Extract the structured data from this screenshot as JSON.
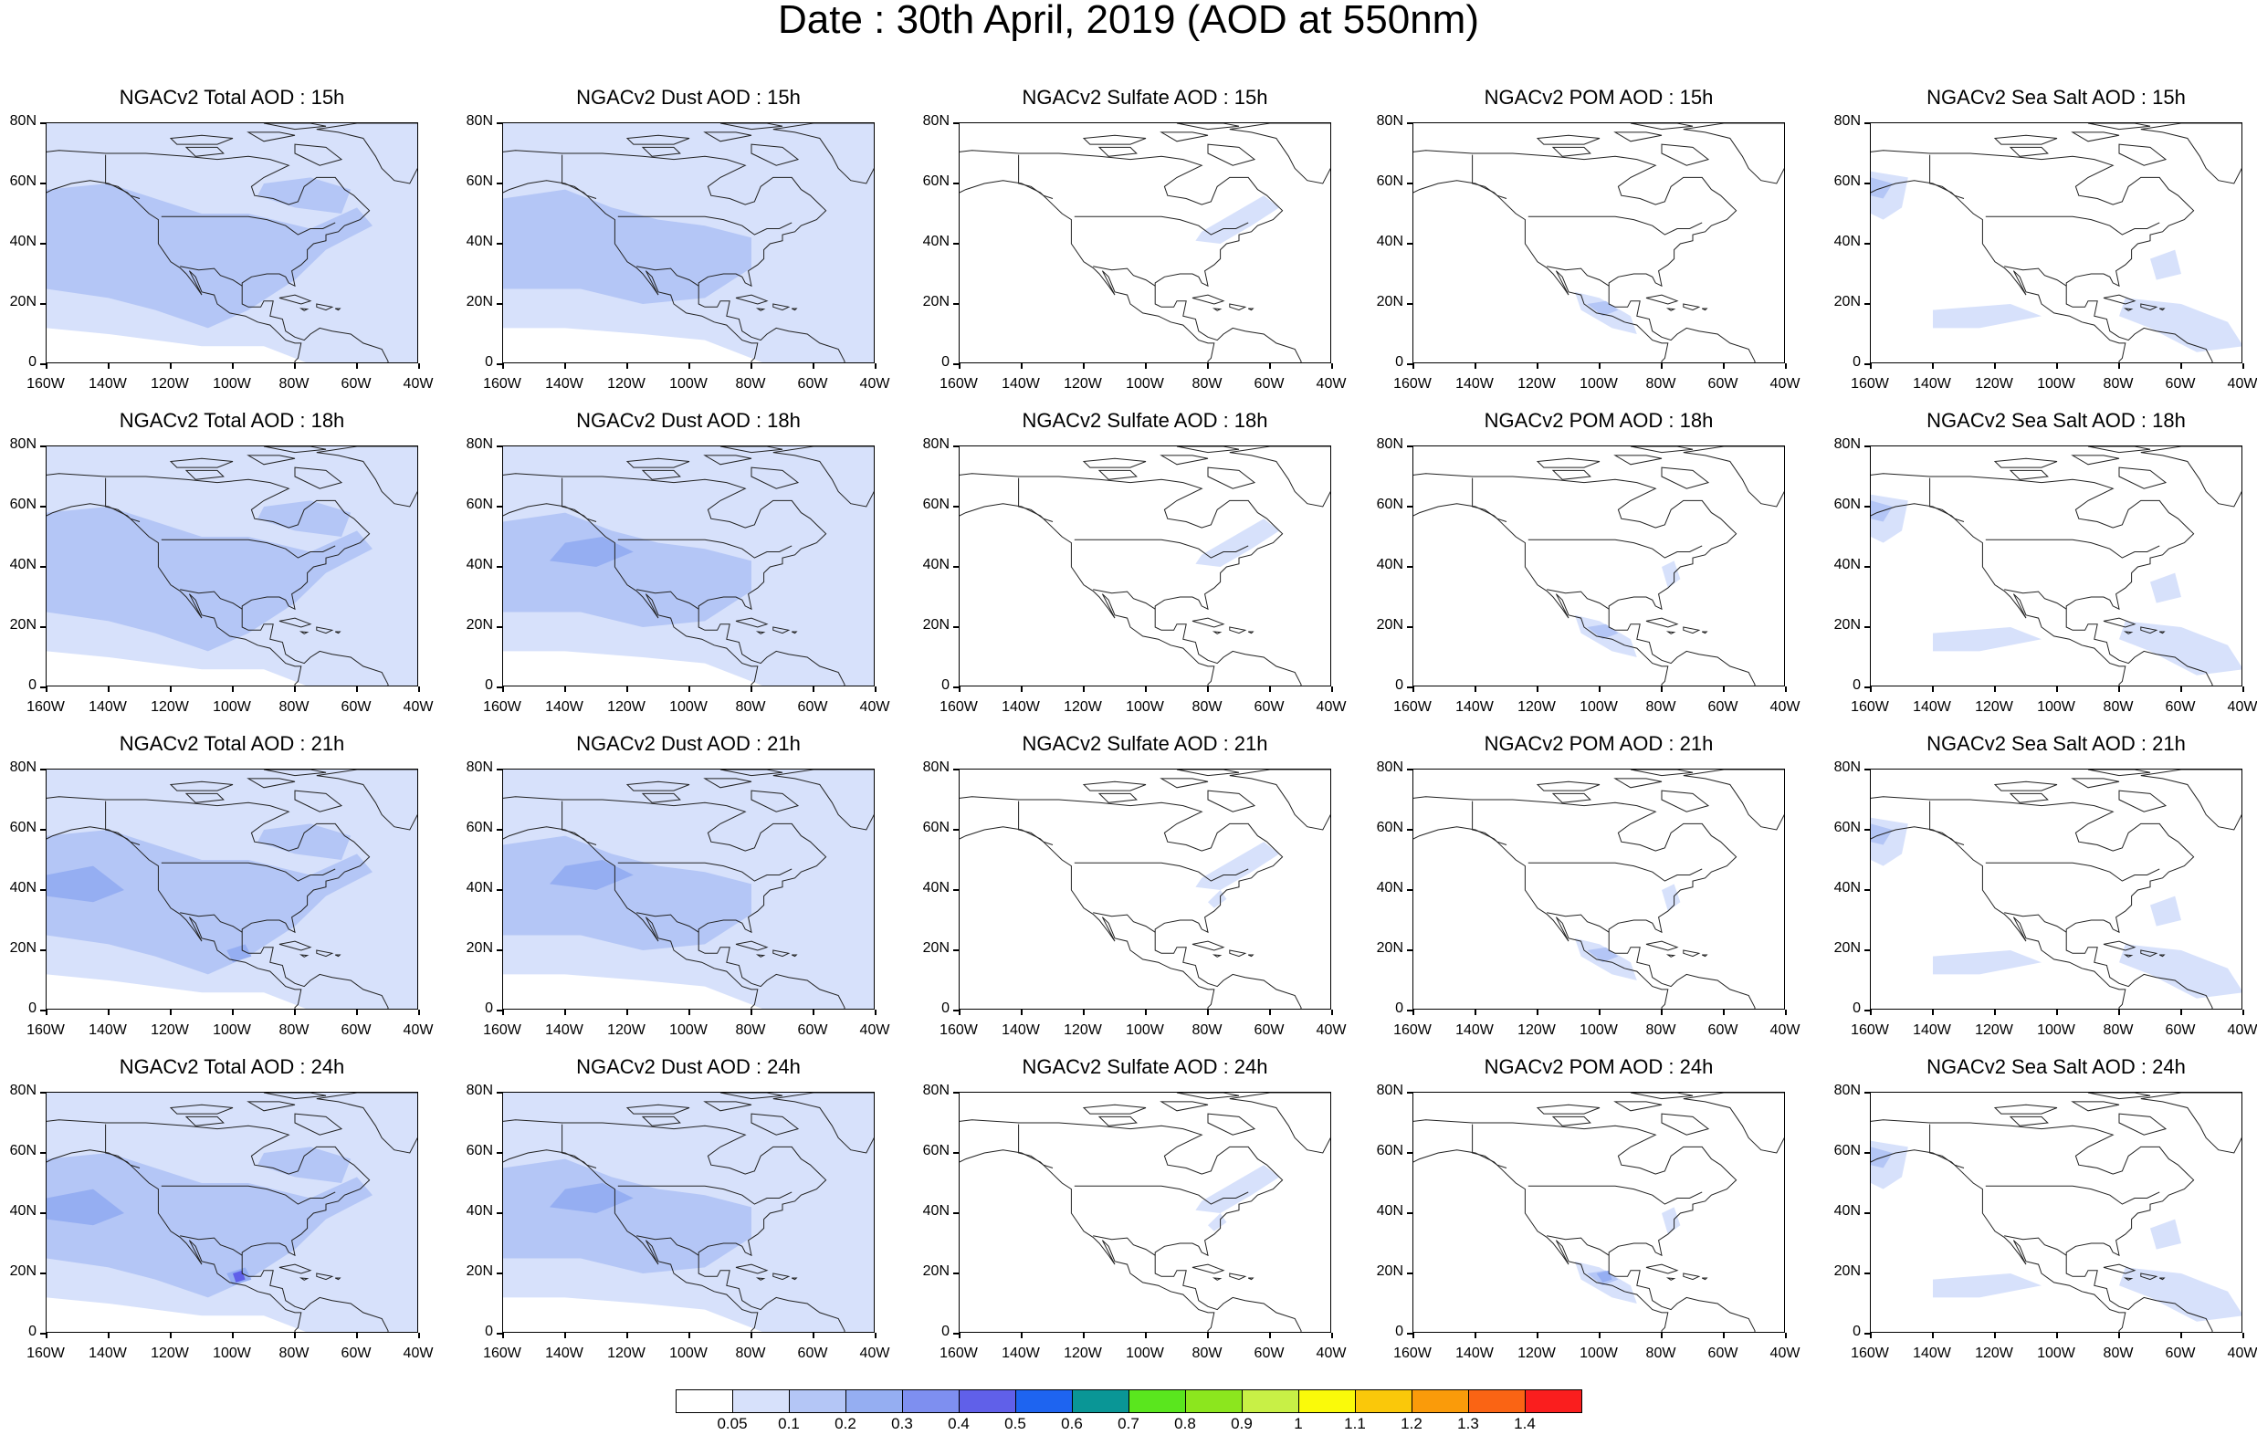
{
  "title": "Date : 30th April, 2019 (AOD at 550nm)",
  "row_times": [
    "15h",
    "18h",
    "21h",
    "24h"
  ],
  "panel_titles": [
    [
      "NGACv2 Total AOD : 15h",
      "NGACv2 Dust AOD : 15h",
      "NGACv2 Sulfate AOD : 15h",
      "NGACv2 POM AOD : 15h",
      "NGACv2 Sea Salt AOD : 15h"
    ],
    [
      "NGACv2 Total AOD : 18h",
      "NGACv2 Dust AOD : 18h",
      "NGACv2 Sulfate AOD : 18h",
      "NGACv2 POM AOD : 18h",
      "NGACv2 Sea Salt AOD : 18h"
    ],
    [
      "NGACv2 Total AOD : 21h",
      "NGACv2 Dust AOD : 21h",
      "NGACv2 Sulfate AOD : 21h",
      "NGACv2 POM AOD : 21h",
      "NGACv2 Sea Salt AOD : 21h"
    ],
    [
      "NGACv2 Total AOD : 24h",
      "NGACv2 Dust AOD : 24h",
      "NGACv2 Sulfate AOD : 24h",
      "NGACv2 POM AOD : 24h",
      "NGACv2 Sea Salt  AOD : 24h"
    ]
  ],
  "species": [
    "Total",
    "Dust",
    "Sulfate",
    "POM",
    "Sea Salt"
  ],
  "lat_labels": [
    "80N",
    "60N",
    "40N",
    "20N",
    "0"
  ],
  "lon_labels": [
    "160W",
    "140W",
    "120W",
    "100W",
    "80W",
    "60W",
    "40W"
  ],
  "colorbar": {
    "colors": [
      "#ffffff",
      "#d7e1fb",
      "#b4c6f6",
      "#95aef2",
      "#7e8ff0",
      "#6060e9",
      "#1e64f0",
      "#0a9696",
      "#5ae61e",
      "#8ce61e",
      "#c8f046",
      "#fafa0a",
      "#fac80a",
      "#fa9b0a",
      "#fa6414",
      "#fa1e1e"
    ],
    "labels": [
      "0.05",
      "0.1",
      "0.2",
      "0.3",
      "0.4",
      "0.5",
      "0.6",
      "0.7",
      "0.8",
      "0.9",
      "1",
      "1.1",
      "1.2",
      "1.3",
      "1.4"
    ]
  },
  "colors": {
    "light_blue": "#d7e1fb",
    "mid_blue": "#b4c6f6",
    "strong_blue": "#95aef2",
    "deep_blue": "#6060e9",
    "coastline": "#222222"
  }
}
